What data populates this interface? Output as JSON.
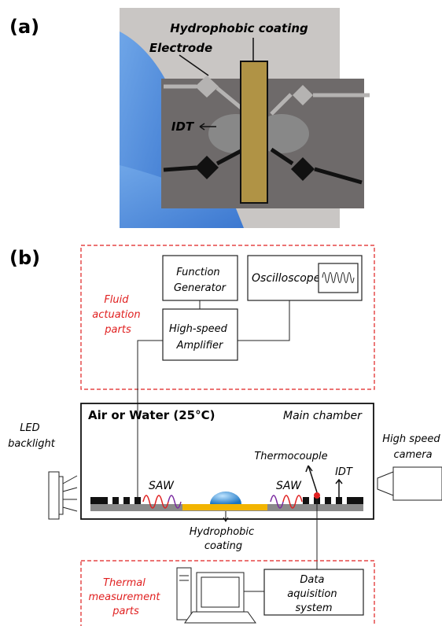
{
  "panel_a": {
    "label": "(a)",
    "coating_label": "Hydrophobic coating",
    "electrode_label": "Electrode",
    "idt_label": "IDT"
  },
  "panel_b": {
    "label": "(b)",
    "fluid_group": [
      "Fluid",
      "actuation",
      "parts"
    ],
    "function_generator": [
      "Function",
      "Generator"
    ],
    "oscilloscope": "Oscilloscope",
    "amplifier": [
      "High-speed",
      "Amplifier"
    ],
    "chamber_medium": "Air or Water (25°C)",
    "chamber_name": "Main chamber",
    "led": [
      "LED",
      "backlight"
    ],
    "camera": [
      "High speed",
      "camera"
    ],
    "thermocouple": "Thermocouple",
    "idt": "IDT",
    "saw_left": "SAW",
    "saw_right": "SAW",
    "coating": [
      "Hydrophobic",
      "coating"
    ],
    "thermal_group": [
      "Thermal",
      "measurement",
      "parts"
    ],
    "daq": [
      "Data",
      "aquisition",
      "system"
    ]
  }
}
